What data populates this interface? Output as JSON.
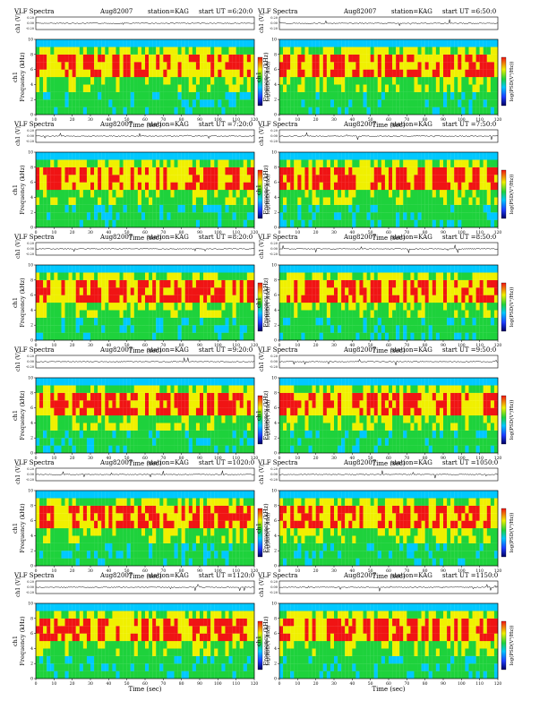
{
  "chart_data": [
    {
      "type": "heatmap",
      "title": "VLF Spectra",
      "date": "Aug82007",
      "station": "station=KAG",
      "start": "start UT =6:20:0",
      "xlabel": "Time (sec)",
      "ylabel": "Frequency (kHz)",
      "channel_label": "ch1",
      "trace_label": "ch1 (V)",
      "colorbar_label": "log(PSD(V²/Hz))",
      "xlim": [
        0,
        120
      ],
      "ylim": [
        0,
        10
      ],
      "xticks": [
        0,
        10,
        20,
        30,
        40,
        50,
        60,
        70,
        80,
        90,
        100,
        110,
        120
      ],
      "yticks": [
        0,
        2,
        4,
        6,
        8,
        10
      ],
      "trace_yticks": [
        "0.20",
        "0.00",
        "-0.20"
      ]
    },
    {
      "type": "heatmap",
      "title": "VLF Spectra",
      "date": "Aug82007",
      "station": "station=KAG",
      "start": "start UT =6:50:0",
      "xlabel": "Time (sec)",
      "ylabel": "Frequency (kHz)",
      "channel_label": "ch1",
      "trace_label": "ch1 (V)",
      "colorbar_label": "log(PSD(V²/Hz))",
      "xlim": [
        0,
        120
      ],
      "ylim": [
        0,
        10
      ],
      "xticks": [
        0,
        10,
        20,
        30,
        40,
        50,
        60,
        70,
        80,
        90,
        100,
        110,
        120
      ],
      "yticks": [
        0,
        2,
        4,
        6,
        8,
        10
      ],
      "trace_yticks": [
        "0.20",
        "0.00",
        "-0.20"
      ]
    },
    {
      "type": "heatmap",
      "title": "VLF Spectra",
      "date": "Aug82007",
      "station": "station=KAG",
      "start": "start UT =7:20:0",
      "xlabel": "Time (sec)",
      "ylabel": "Frequency (kHz)",
      "channel_label": "ch1",
      "trace_label": "ch1 (V)",
      "colorbar_label": "log(PSD(V²/Hz))",
      "xlim": [
        0,
        120
      ],
      "ylim": [
        0,
        10
      ],
      "xticks": [
        0,
        10,
        20,
        30,
        40,
        50,
        60,
        70,
        80,
        90,
        100,
        110,
        120
      ],
      "yticks": [
        0,
        2,
        4,
        6,
        8,
        10
      ],
      "trace_yticks": [
        "0.20",
        "0.00",
        "-0.20"
      ]
    },
    {
      "type": "heatmap",
      "title": "VLF Spectra",
      "date": "Aug82007",
      "station": "station=KAG",
      "start": "start UT =7:50:0",
      "xlabel": "Time (sec)",
      "ylabel": "Frequency (kHz)",
      "channel_label": "ch1",
      "trace_label": "ch1 (V)",
      "colorbar_label": "log(PSD(V²/Hz))",
      "xlim": [
        0,
        120
      ],
      "ylim": [
        0,
        10
      ],
      "xticks": [
        0,
        10,
        20,
        30,
        40,
        50,
        60,
        70,
        80,
        90,
        100,
        110,
        120
      ],
      "yticks": [
        0,
        2,
        4,
        6,
        8,
        10
      ],
      "trace_yticks": [
        "0.20",
        "0.00",
        "-0.20"
      ]
    },
    {
      "type": "heatmap",
      "title": "VLF Spectra",
      "date": "Aug82007",
      "station": "station=KAG",
      "start": "start UT =8:20:0",
      "xlabel": "Time (sec)",
      "ylabel": "Frequency (kHz)",
      "channel_label": "ch1",
      "trace_label": "ch1 (V)",
      "colorbar_label": "log(PSD(V²/Hz))",
      "xlim": [
        0,
        120
      ],
      "ylim": [
        0,
        10
      ],
      "xticks": [
        0,
        10,
        20,
        30,
        40,
        50,
        60,
        70,
        80,
        90,
        100,
        110,
        120
      ],
      "yticks": [
        0,
        2,
        4,
        6,
        8,
        10
      ],
      "trace_yticks": [
        "0.20",
        "0.00",
        "-0.20"
      ]
    },
    {
      "type": "heatmap",
      "title": "VLF Spectra",
      "date": "Aug82007",
      "station": "station=KAG",
      "start": "start UT =8:50:0",
      "xlabel": "Time (sec)",
      "ylabel": "Frequency (kHz)",
      "channel_label": "ch1",
      "trace_label": "ch1 (V)",
      "colorbar_label": "log(PSD(V²/Hz))",
      "xlim": [
        0,
        120
      ],
      "ylim": [
        0,
        10
      ],
      "xticks": [
        0,
        10,
        20,
        30,
        40,
        50,
        60,
        70,
        80,
        90,
        100,
        110,
        120
      ],
      "yticks": [
        0,
        2,
        4,
        6,
        8,
        10
      ],
      "trace_yticks": [
        "0.20",
        "0.00",
        "-0.20"
      ]
    },
    {
      "type": "heatmap",
      "title": "VLF Spectra",
      "date": "Aug82007",
      "station": "station=KAG",
      "start": "start UT =9:20:0",
      "xlabel": "Time (sec)",
      "ylabel": "Frequency (kHz)",
      "channel_label": "ch1",
      "trace_label": "ch1 (V)",
      "colorbar_label": "log(PSD(V²/Hz))",
      "xlim": [
        0,
        120
      ],
      "ylim": [
        0,
        10
      ],
      "xticks": [
        0,
        10,
        20,
        30,
        40,
        50,
        60,
        70,
        80,
        90,
        100,
        110,
        120
      ],
      "yticks": [
        0,
        2,
        4,
        6,
        8,
        10
      ],
      "trace_yticks": [
        "0.20",
        "0.00",
        "-0.20"
      ]
    },
    {
      "type": "heatmap",
      "title": "VLF Spectra",
      "date": "Aug82007",
      "station": "station=KAG",
      "start": "start UT =9:50:0",
      "xlabel": "Time (sec)",
      "ylabel": "Frequency (kHz)",
      "channel_label": "ch1",
      "trace_label": "ch1 (V)",
      "colorbar_label": "log(PSD(V²/Hz))",
      "xlim": [
        0,
        120
      ],
      "ylim": [
        0,
        10
      ],
      "xticks": [
        0,
        10,
        20,
        30,
        40,
        50,
        60,
        70,
        80,
        90,
        100,
        110,
        120
      ],
      "yticks": [
        0,
        2,
        4,
        6,
        8,
        10
      ],
      "trace_yticks": [
        "0.20",
        "0.00",
        "-0.20"
      ]
    },
    {
      "type": "heatmap",
      "title": "VLF Spectra",
      "date": "Aug82007",
      "station": "station=KAG",
      "start": "start UT =1020:0",
      "xlabel": "Time (sec)",
      "ylabel": "Frequency (kHz)",
      "channel_label": "ch1",
      "trace_label": "ch1 (V)",
      "colorbar_label": "log(PSD(V²/Hz))",
      "xlim": [
        0,
        120
      ],
      "ylim": [
        0,
        10
      ],
      "xticks": [
        0,
        10,
        20,
        30,
        40,
        50,
        60,
        70,
        80,
        90,
        100,
        110,
        120
      ],
      "yticks": [
        0,
        2,
        4,
        6,
        8,
        10
      ],
      "trace_yticks": [
        "0.20",
        "0.00",
        "-0.20"
      ]
    },
    {
      "type": "heatmap",
      "title": "VLF Spectra",
      "date": "Aug82007",
      "station": "station=KAG",
      "start": "start UT =1050:0",
      "xlabel": "Time (sec)",
      "ylabel": "Frequency (kHz)",
      "channel_label": "ch1",
      "trace_label": "ch1 (V)",
      "colorbar_label": "log(PSD(V²/Hz))",
      "xlim": [
        0,
        120
      ],
      "ylim": [
        0,
        10
      ],
      "xticks": [
        0,
        10,
        20,
        30,
        40,
        50,
        60,
        70,
        80,
        90,
        100,
        110,
        120
      ],
      "yticks": [
        0,
        2,
        4,
        6,
        8,
        10
      ],
      "trace_yticks": [
        "0.20",
        "0.00",
        "-0.20"
      ]
    },
    {
      "type": "heatmap",
      "title": "VLF Spectra",
      "date": "Aug82007",
      "station": "station=KAG",
      "start": "start UT =1120:0",
      "xlabel": "Time (sec)",
      "ylabel": "Frequency (kHz)",
      "channel_label": "ch1",
      "trace_label": "ch1 (V)",
      "colorbar_label": "log(PSD(V²/Hz))",
      "xlim": [
        0,
        120
      ],
      "ylim": [
        0,
        10
      ],
      "xticks": [
        0,
        10,
        20,
        30,
        40,
        50,
        60,
        70,
        80,
        90,
        100,
        110,
        120
      ],
      "yticks": [
        0,
        2,
        4,
        6,
        8,
        10
      ],
      "trace_yticks": [
        "0.20",
        "0.00",
        "-0.20"
      ]
    },
    {
      "type": "heatmap",
      "title": "VLF Spectra",
      "date": "Aug82007",
      "station": "station=KAG",
      "start": "start UT =1150:0",
      "xlabel": "Time (sec)",
      "ylabel": "Frequency (kHz)",
      "channel_label": "ch1",
      "trace_label": "ch1 (V)",
      "colorbar_label": "log(PSD(V²/Hz))",
      "xlim": [
        0,
        120
      ],
      "ylim": [
        0,
        10
      ],
      "xticks": [
        0,
        10,
        20,
        30,
        40,
        50,
        60,
        70,
        80,
        90,
        100,
        110,
        120
      ],
      "yticks": [
        0,
        2,
        4,
        6,
        8,
        10
      ],
      "trace_yticks": [
        "0.20",
        "0.00",
        "-0.20"
      ]
    }
  ],
  "colors": {
    "low": "#1e3cff",
    "mid_low": "#00c8ff",
    "mid": "#1ed23c",
    "mid_high": "#f0f000",
    "high": "#f01414",
    "line": "#000000"
  }
}
